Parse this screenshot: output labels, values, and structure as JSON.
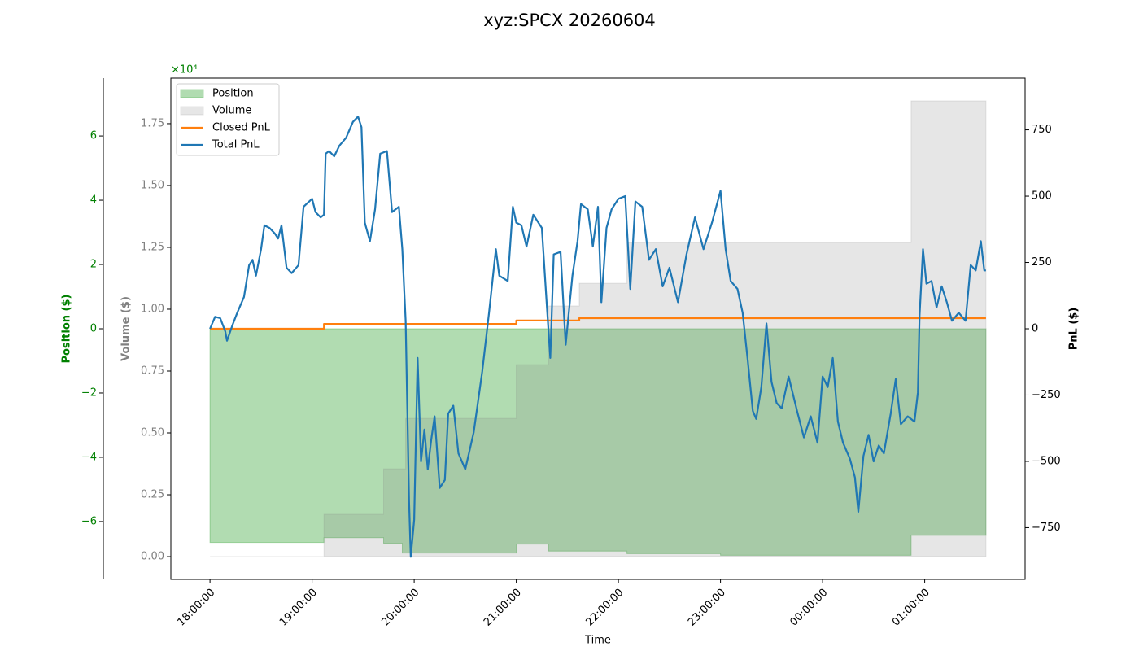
{
  "chart_data": {
    "type": "multi_axis_time",
    "title": "xyz:SPCX 20260604",
    "x_label": "Time",
    "xlim": [
      "17:37",
      "01:59"
    ],
    "xticks": [
      "18:00:00",
      "19:00:00",
      "20:00:00",
      "21:00:00",
      "22:00:00",
      "23:00:00",
      "00:00:00",
      "01:00:00"
    ],
    "y_label": "Position ($)",
    "y_offset_label": "×10⁴",
    "ylim": [
      -7.8,
      7.8
    ],
    "yticks": [
      {
        "value": -6,
        "label": "−6"
      },
      {
        "value": -4,
        "label": "−4"
      },
      {
        "value": -2,
        "label": "−2"
      },
      0,
      2,
      4,
      6
    ],
    "volume_label": "Volume ($)",
    "volume_lim": [
      -0.092,
      1.934
    ],
    "volume_ticks": [
      {
        "value": 0,
        "label": "0.00"
      },
      {
        "value": 0.25,
        "label": "0.25"
      },
      {
        "value": 0.5,
        "label": "0.50"
      },
      {
        "value": 0.75,
        "label": "0.75"
      },
      {
        "value": 1,
        "label": "1.00"
      },
      {
        "value": 1.25,
        "label": "1.25"
      },
      {
        "value": 1.5,
        "label": "1.50"
      },
      {
        "value": 1.75,
        "label": "1.75"
      }
    ],
    "y2_label": "PnL ($)",
    "y2lim": [
      -945,
      945
    ],
    "y2ticks": [
      {
        "value": -750,
        "label": "−750"
      },
      {
        "value": -500,
        "label": "−500"
      },
      {
        "value": -250,
        "label": "−250"
      },
      0,
      250,
      500,
      750
    ],
    "legend": "upper left",
    "series": [
      {
        "name": "Position",
        "kind": "area",
        "drawstyle": "steps-post",
        "axis": "y",
        "color": "#2ca02c",
        "alpha": 0.37,
        "x": [
          "18:00",
          "19:07",
          "19:42",
          "19:53",
          "21:00",
          "21:19",
          "22:05",
          "23:00",
          "00:52",
          "01:36"
        ],
        "values": [
          -6.65,
          -6.5,
          -6.68,
          -6.98,
          -6.7,
          -6.92,
          -7.0,
          -7.05,
          -6.43,
          -6.43
        ]
      },
      {
        "name": "Volume",
        "kind": "area",
        "drawstyle": "steps-post",
        "axis": "volume",
        "color": "#808080",
        "alpha": 0.2,
        "x": [
          "18:00",
          "19:07",
          "19:42",
          "19:55",
          "21:00",
          "21:19",
          "21:37",
          "22:05",
          "00:52",
          "01:36"
        ],
        "values": [
          0,
          0.171,
          0.355,
          0.559,
          0.776,
          1.013,
          1.105,
          1.27,
          1.842,
          1.842
        ]
      },
      {
        "name": "Closed PnL",
        "kind": "line",
        "drawstyle": "steps-post",
        "axis": "y2",
        "color": "#ff7f0e",
        "x": [
          "18:00",
          "19:07",
          "21:00",
          "21:37",
          "01:36"
        ],
        "values": [
          0,
          18,
          31,
          40,
          40
        ]
      },
      {
        "name": "Total PnL",
        "kind": "line",
        "drawstyle": "default",
        "axis": "y2",
        "color": "#1f77b4",
        "x": [
          "18:00",
          "18:03",
          "18:06",
          "18:09",
          "18:10",
          "18:13",
          "18:16",
          "18:20",
          "18:23",
          "18:25",
          "18:27",
          "18:30",
          "18:32",
          "18:35",
          "18:38",
          "18:40",
          "18:42",
          "18:45",
          "18:48",
          "18:52",
          "18:55",
          "19:00",
          "19:02",
          "19:05",
          "19:07",
          "19:08",
          "19:10",
          "19:13",
          "19:16",
          "19:20",
          "19:24",
          "19:27",
          "19:29",
          "19:31",
          "19:34",
          "19:37",
          "19:40",
          "19:44",
          "19:47",
          "19:51",
          "19:53",
          "19:55",
          "19:57",
          "19:58",
          "20:00",
          "20:02",
          "20:04",
          "20:06",
          "20:08",
          "20:10",
          "20:12",
          "20:15",
          "20:18",
          "20:20",
          "20:23",
          "20:26",
          "20:30",
          "20:35",
          "20:40",
          "20:44",
          "20:48",
          "20:50",
          "20:55",
          "20:58",
          "21:00",
          "21:03",
          "21:06",
          "21:10",
          "21:15",
          "21:18",
          "21:20",
          "21:22",
          "21:26",
          "21:29",
          "21:33",
          "21:36",
          "21:38",
          "21:42",
          "21:45",
          "21:48",
          "21:50",
          "21:53",
          "21:56",
          "22:00",
          "22:04",
          "22:07",
          "22:10",
          "22:14",
          "22:18",
          "22:22",
          "22:26",
          "22:30",
          "22:35",
          "22:40",
          "22:45",
          "22:50",
          "22:55",
          "23:00",
          "23:03",
          "23:06",
          "23:10",
          "23:13",
          "23:16",
          "23:19",
          "23:21",
          "23:24",
          "23:27",
          "23:30",
          "23:33",
          "23:36",
          "23:40",
          "23:45",
          "23:49",
          "23:53",
          "23:57",
          "00:00",
          "00:03",
          "00:06",
          "00:09",
          "00:12",
          "00:16",
          "00:19",
          "00:21",
          "00:24",
          "00:27",
          "00:30",
          "00:33",
          "00:36",
          "00:40",
          "00:43",
          "00:46",
          "00:50",
          "00:54",
          "00:56",
          "00:57",
          "00:59",
          "01:01",
          "01:04",
          "01:07",
          "01:10",
          "01:13",
          "01:16",
          "01:20",
          "01:24",
          "01:27",
          "01:30",
          "01:33",
          "01:35",
          "01:36"
        ],
        "values": [
          0,
          45,
          40,
          -10,
          -45,
          10,
          60,
          120,
          240,
          260,
          200,
          300,
          390,
          380,
          360,
          340,
          390,
          230,
          210,
          240,
          460,
          490,
          440,
          420,
          430,
          660,
          670,
          650,
          690,
          720,
          780,
          800,
          760,
          400,
          330,
          450,
          660,
          670,
          440,
          460,
          300,
          30,
          -650,
          -860,
          -720,
          -110,
          -500,
          -380,
          -530,
          -420,
          -330,
          -600,
          -570,
          -320,
          -290,
          -470,
          -530,
          -390,
          -160,
          60,
          300,
          200,
          180,
          460,
          400,
          390,
          310,
          430,
          380,
          80,
          -110,
          280,
          290,
          -60,
          200,
          330,
          470,
          450,
          310,
          460,
          100,
          380,
          450,
          490,
          500,
          150,
          480,
          460,
          260,
          300,
          160,
          230,
          100,
          280,
          420,
          300,
          400,
          520,
          300,
          180,
          150,
          60,
          -120,
          -310,
          -340,
          -220,
          20,
          -200,
          -280,
          -300,
          -180,
          -310,
          -410,
          -330,
          -430,
          -180,
          -220,
          -110,
          -350,
          -430,
          -490,
          -560,
          -690,
          -480,
          -400,
          -500,
          -440,
          -470,
          -320,
          -190,
          -360,
          -330,
          -350,
          -240,
          50,
          300,
          170,
          180,
          80,
          160,
          100,
          30,
          60,
          30,
          240,
          220,
          330,
          220,
          220
        ]
      }
    ]
  }
}
